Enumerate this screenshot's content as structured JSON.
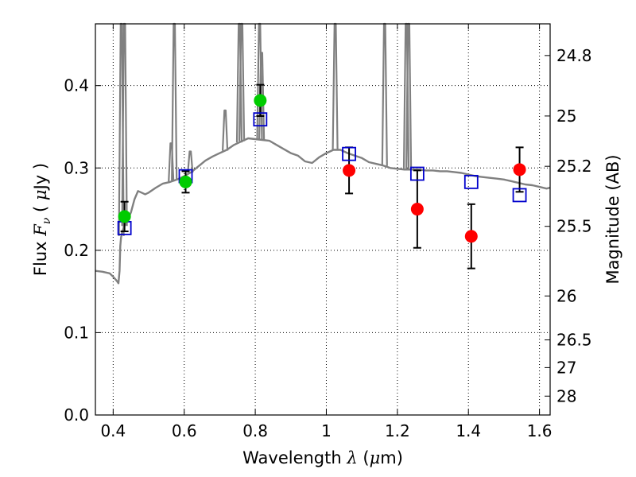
{
  "chart_data": {
    "type": "scatter",
    "xlabel_prefix": "Wavelength",
    "xlabel_symbol": "λ",
    "xlabel_unit_open": "(",
    "xlabel_unit_mu": "μ",
    "xlabel_unit_rest": "m)",
    "ylabel_prefix": "Flux",
    "ylabel_symbol": "F",
    "ylabel_subscript": "ν",
    "ylabel_unit_open": "(",
    "ylabel_unit_mu": "μ",
    "ylabel_unit_rest": "Jy )",
    "y2label": "Magnitude (AB)",
    "xlim": [
      0.35,
      1.63
    ],
    "ylim": [
      0.0,
      0.475
    ],
    "x_ticks": [
      0.4,
      0.6,
      0.8,
      1.0,
      1.2,
      1.4,
      1.6
    ],
    "x_tick_labels": [
      "0.4",
      "0.6",
      "0.8",
      "1",
      "1.2",
      "1.4",
      "1.6"
    ],
    "y_ticks": [
      0.0,
      0.1,
      0.2,
      0.3,
      0.4
    ],
    "y_tick_labels": [
      "0.0",
      "0.1",
      "0.2",
      "0.3",
      "0.4"
    ],
    "y2_ticks": [
      24.8,
      25,
      25.2,
      25.5,
      26,
      26.5,
      27,
      28
    ],
    "y2_tick_labels": [
      "24.8",
      "25",
      "25.2",
      "25.5",
      "26",
      "26.5",
      "27",
      "28"
    ],
    "grid": true,
    "colors": {
      "model": "#808080",
      "optical": "#00cc00",
      "infrared": "#ff0000",
      "model_phot": "#0000cc",
      "errorbar": "#000000"
    },
    "series": [
      {
        "kind": "model_spectrum",
        "x": [
          0.35,
          0.37,
          0.39,
          0.4,
          0.41,
          0.415,
          0.418,
          0.42,
          0.422,
          0.425,
          0.43,
          0.44,
          0.45,
          0.46,
          0.47,
          0.48,
          0.49,
          0.5,
          0.52,
          0.54,
          0.56,
          0.58,
          0.6,
          0.62,
          0.64,
          0.66,
          0.68,
          0.7,
          0.72,
          0.74,
          0.76,
          0.78,
          0.8,
          0.82,
          0.84,
          0.86,
          0.88,
          0.9,
          0.92,
          0.94,
          0.96,
          0.98,
          1.0,
          1.02,
          1.04,
          1.06,
          1.08,
          1.1,
          1.12,
          1.14,
          1.16,
          1.18,
          1.2,
          1.22,
          1.24,
          1.26,
          1.28,
          1.3,
          1.32,
          1.34,
          1.36,
          1.38,
          1.4,
          1.42,
          1.44,
          1.46,
          1.48,
          1.5,
          1.52,
          1.54,
          1.56,
          1.58,
          1.6,
          1.62,
          1.63
        ],
        "y": [
          0.175,
          0.174,
          0.172,
          0.168,
          0.163,
          0.16,
          0.175,
          0.205,
          0.215,
          0.222,
          0.228,
          0.236,
          0.246,
          0.262,
          0.272,
          0.27,
          0.268,
          0.27,
          0.276,
          0.281,
          0.283,
          0.286,
          0.29,
          0.295,
          0.302,
          0.309,
          0.314,
          0.318,
          0.322,
          0.328,
          0.332,
          0.336,
          0.335,
          0.334,
          0.333,
          0.328,
          0.323,
          0.318,
          0.315,
          0.308,
          0.306,
          0.313,
          0.318,
          0.322,
          0.322,
          0.318,
          0.315,
          0.312,
          0.307,
          0.305,
          0.303,
          0.3,
          0.299,
          0.298,
          0.298,
          0.298,
          0.297,
          0.297,
          0.296,
          0.296,
          0.295,
          0.294,
          0.292,
          0.29,
          0.289,
          0.288,
          0.287,
          0.286,
          0.284,
          0.282,
          0.28,
          0.279,
          0.277,
          0.275,
          0.276
        ]
      },
      {
        "kind": "model_lines",
        "x": [
          0.423,
          0.432,
          0.563,
          0.572,
          0.617,
          0.715,
          0.755,
          0.762,
          0.812,
          0.818,
          1.025,
          1.164,
          1.225,
          1.232
        ],
        "y": [
          0.475,
          0.475,
          0.33,
          0.475,
          0.32,
          0.37,
          0.475,
          0.475,
          0.475,
          0.44,
          0.475,
          0.475,
          0.475,
          0.475
        ]
      },
      {
        "name": "",
        "kind": "optical_photometry",
        "x": [
          0.432,
          0.604,
          0.814
        ],
        "y": [
          0.241,
          0.283,
          0.382
        ],
        "yerr": [
          0.018,
          0.013,
          0.019
        ]
      },
      {
        "name": "",
        "kind": "infrared_photometry",
        "x": [
          1.064,
          1.256,
          1.408,
          1.544
        ],
        "y": [
          0.297,
          0.25,
          0.217,
          0.298
        ],
        "yerr": [
          0.028,
          0.047,
          0.039,
          0.027
        ]
      },
      {
        "name": "",
        "kind": "model_photometry",
        "x": [
          0.432,
          0.604,
          0.814,
          1.064,
          1.256,
          1.408,
          1.544
        ],
        "y": [
          0.227,
          0.29,
          0.359,
          0.317,
          0.293,
          0.283,
          0.267
        ]
      }
    ]
  }
}
